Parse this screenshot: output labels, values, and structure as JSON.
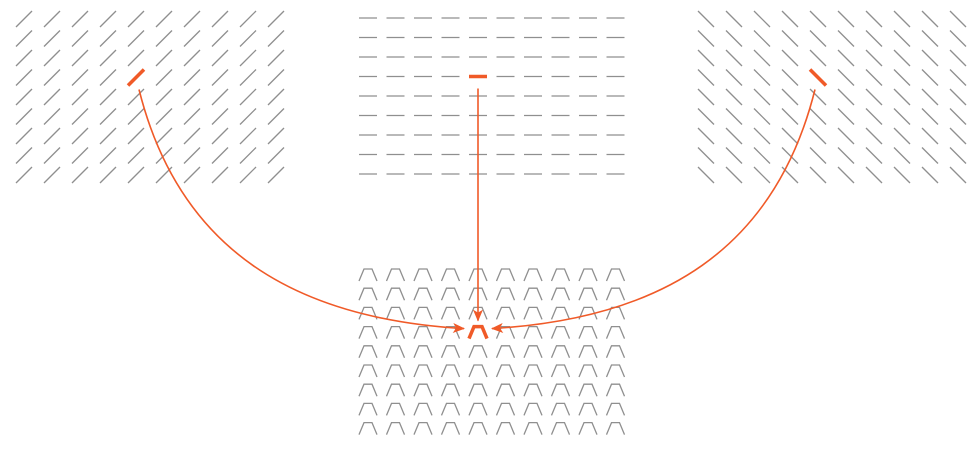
{
  "diagram": {
    "grid": {
      "rows": 9,
      "cols": 10
    },
    "colors": {
      "texture": "#8f8f8f",
      "highlight": "#f05a28",
      "arrow": "#f05a28"
    },
    "panels": [
      {
        "id": "left-diagonal",
        "element": "forward-slash",
        "highlight": {
          "row": 3,
          "col": 4
        }
      },
      {
        "id": "center-horizontal",
        "element": "dash",
        "highlight": {
          "row": 3,
          "col": 4
        }
      },
      {
        "id": "right-diagonal",
        "element": "back-slash",
        "highlight": {
          "row": 3,
          "col": 4
        }
      },
      {
        "id": "bottom-combined",
        "element": "trapezoid",
        "highlight": {
          "row": 3,
          "col": 4
        }
      }
    ],
    "arrows": [
      {
        "from": "left-diagonal",
        "to": "bottom-combined"
      },
      {
        "from": "center-horizontal",
        "to": "bottom-combined"
      },
      {
        "from": "right-diagonal",
        "to": "bottom-combined"
      }
    ]
  }
}
